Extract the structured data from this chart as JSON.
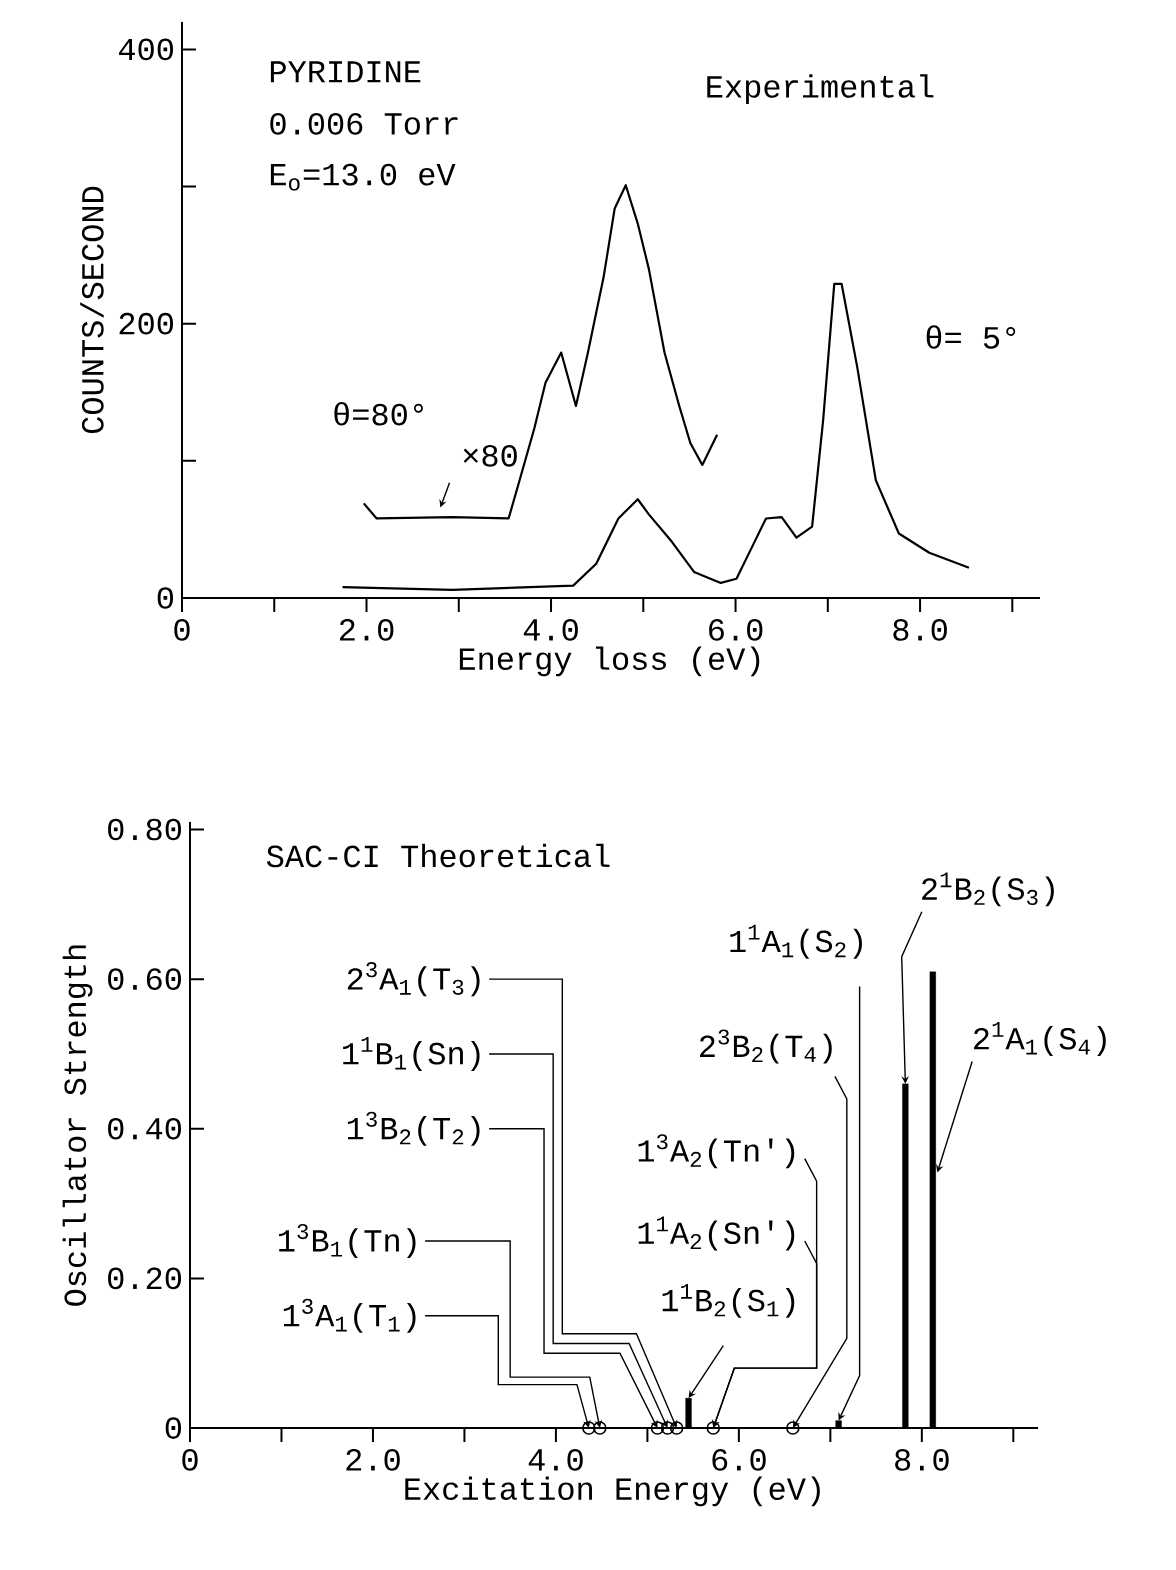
{
  "chart_data": [
    {
      "type": "line",
      "title": "Experimental",
      "xlabel": "Energy loss (eV)",
      "ylabel": "COUNTS/SECOND",
      "xlim": [
        0,
        9.3
      ],
      "ylim": [
        0,
        420
      ],
      "xticks": [
        0,
        {
          "value": 1,
          "label": null
        },
        {
          "value": 2,
          "label": "2.0"
        },
        {
          "value": 3,
          "label": null
        },
        {
          "value": 4,
          "label": "4.0"
        },
        {
          "value": 5,
          "label": null
        },
        {
          "value": 6,
          "label": "6.0"
        },
        {
          "value": 7,
          "label": null
        },
        {
          "value": 8,
          "label": "8.0"
        },
        {
          "value": 9,
          "label": null
        }
      ],
      "yticks": [
        0,
        {
          "value": 100,
          "label": null
        },
        200,
        {
          "value": 300,
          "label": null
        },
        400
      ],
      "series": [
        {
          "name": "θ= 5°",
          "color": "#000000",
          "x": [
            1.74,
            2.93,
            4.24,
            4.49,
            4.73,
            4.94,
            5.06,
            5.31,
            5.55,
            5.84,
            6.01,
            6.17,
            6.33,
            6.5,
            6.66,
            6.83,
            6.95,
            7.07,
            7.15,
            7.32,
            7.52,
            7.77,
            8.1,
            8.53
          ],
          "values": [
            8,
            6,
            9,
            25,
            58,
            72,
            61,
            41,
            19,
            11,
            14,
            36,
            58,
            59,
            44,
            52,
            130,
            229,
            229,
            168,
            86,
            47,
            33,
            22
          ]
        },
        {
          "name": "θ=80°",
          "color": "#000000",
          "x": [
            1.97,
            2.11,
            2.93,
            3.54,
            3.66,
            3.82,
            3.94,
            4.11,
            4.27,
            4.4,
            4.57,
            4.69,
            4.81,
            4.94,
            5.06,
            5.23,
            5.39,
            5.51,
            5.64,
            5.8
          ],
          "values": [
            69,
            58,
            59,
            58,
            86,
            124,
            157,
            179,
            140,
            179,
            234,
            284,
            301,
            273,
            240,
            179,
            140,
            113,
            97,
            119
          ]
        }
      ],
      "annotations": [
        "PYRIDINE",
        "0.006 Torr",
        "E$_{o}$=13.0 eV",
        "×80"
      ]
    },
    {
      "type": "bar",
      "xlabel": "Excitation Energy (eV)",
      "ylabel": "Oscillator Strength",
      "xlim": [
        0,
        9.27
      ],
      "ylim": [
        0,
        0.81
      ],
      "xticks": [
        0,
        {
          "value": 1,
          "label": null
        },
        {
          "value": 2,
          "label": "2.0"
        },
        {
          "value": 3,
          "label": null
        },
        {
          "value": 4,
          "label": "4.0"
        },
        {
          "value": 5,
          "label": null
        },
        {
          "value": 6,
          "label": "6.0"
        },
        {
          "value": 7,
          "label": null
        },
        {
          "value": 8,
          "label": "8.0"
        },
        {
          "value": 9,
          "label": null
        }
      ],
      "yticks": [
        0,
        {
          "value": 0.2,
          "label": "0.20"
        },
        {
          "value": 0.4,
          "label": "0.40"
        },
        {
          "value": 0.6,
          "label": "0.60"
        },
        {
          "value": 0.8,
          "label": "0.80"
        }
      ],
      "series": [
        {
          "type": "bar",
          "color": "#000000",
          "x": [
            5.45,
            7.09,
            7.82,
            8.12
          ],
          "values": [
            0.04,
            0.01,
            0.46,
            0.61
          ]
        },
        {
          "type": "scatter",
          "marker": "circle",
          "color": "#000000",
          "x": [
            4.36,
            4.48,
            5.11,
            5.22,
            5.32,
            5.72,
            6.59
          ],
          "values": [
            0,
            0,
            0,
            0,
            0,
            0,
            0
          ]
        }
      ],
      "annotations": [
        "SAC-CI Theoretical",
        {
          "text": "1$^{3}$A$_{1}$(T$_{1}$)",
          "x": 4.36,
          "y": 0
        },
        {
          "text": "1$^{3}$B$_{1}$(Tn)",
          "x": 4.48,
          "y": 0
        },
        {
          "text": "1$^{3}$B$_{2}$(T$_{2}$)",
          "x": 5.11,
          "y": 0
        },
        {
          "text": "1$^{1}$B$_{1}$(Sn)",
          "x": 5.22,
          "y": 0
        },
        {
          "text": "2$^{3}$A$_{1}$(T$_{3}$)",
          "x": 5.32,
          "y": 0
        },
        {
          "text": "1$^{1}$B$_{2}$(S$_{1}$)",
          "x": 5.45,
          "y": 0.04
        },
        {
          "text": "1$^{1}$A$_{2}$(Sn')",
          "x": 5.72,
          "y": 0
        },
        {
          "text": "1$^{3}$A$_{2}$(Tn')",
          "x": 5.72,
          "y": 0
        },
        {
          "text": "2$^{3}$B$_{2}$(T$_{4}$)",
          "x": 6.59,
          "y": 0
        },
        {
          "text": "1$^{1}$A$_{1}$(S$_{2}$)",
          "x": 7.09,
          "y": 0.01
        },
        {
          "text": "2$^{1}$B$_{2}$(S$_{3}$)",
          "x": 7.82,
          "y": 0.46
        },
        {
          "text": "2$^{1}$A$_{1}$(S$_{4}$)",
          "x": 8.12,
          "y": 0.61
        }
      ]
    }
  ]
}
